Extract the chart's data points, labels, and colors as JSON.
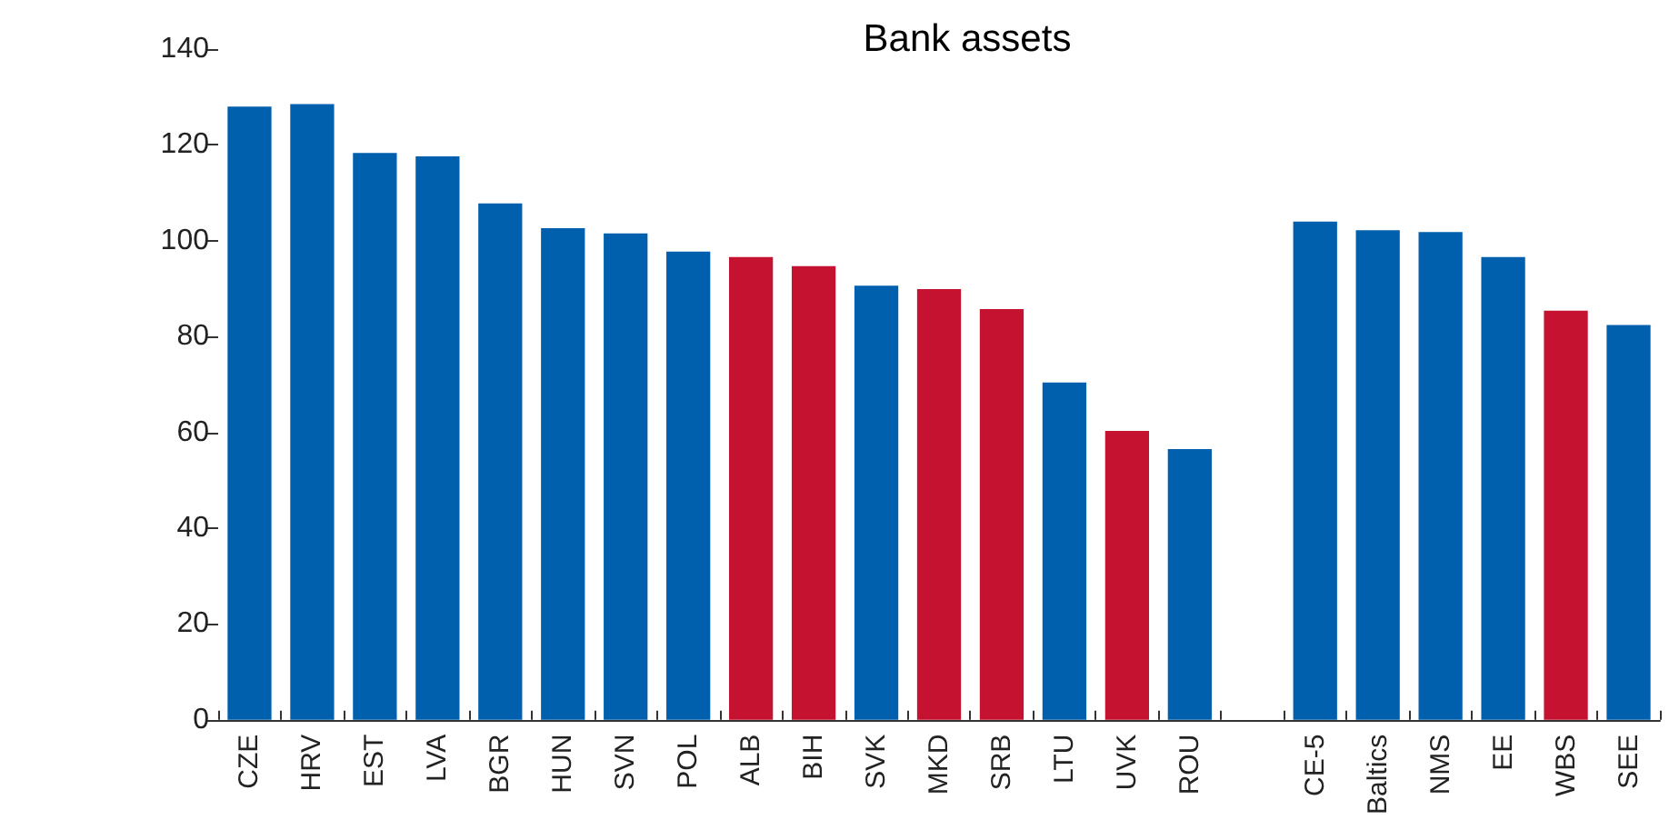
{
  "chart_data": {
    "type": "bar",
    "title": "Bank assets",
    "categories": [
      "CZE",
      "HRV",
      "EST",
      "LVA",
      "BGR",
      "HUN",
      "SVN",
      "POL",
      "ALB",
      "BIH",
      "SVK",
      "MKD",
      "SRB",
      "LTU",
      "UVK",
      "ROU",
      null,
      "CE-5",
      "Baltics",
      "NMS",
      "EE",
      "WBS",
      "SEE"
    ],
    "values": [
      128,
      128.5,
      118.3,
      117.6,
      107.8,
      102.6,
      101.5,
      97.7,
      96.6,
      94.7,
      90.6,
      89.9,
      85.7,
      70.4,
      60.3,
      56.5,
      null,
      104,
      102.2,
      101.8,
      96.6,
      85.4,
      82.4
    ],
    "colors": [
      "#0060ae",
      "#0060ae",
      "#0060ae",
      "#0060ae",
      "#0060ae",
      "#0060ae",
      "#0060ae",
      "#0060ae",
      "#c41230",
      "#c41230",
      "#0060ae",
      "#c41230",
      "#c41230",
      "#0060ae",
      "#c41230",
      "#0060ae",
      null,
      "#0060ae",
      "#0060ae",
      "#0060ae",
      "#0060ae",
      "#c41230",
      "#0060ae"
    ],
    "ylim": [
      0,
      140
    ],
    "yticks": [
      0,
      20,
      40,
      60,
      80,
      100,
      120,
      140
    ],
    "grid": false
  }
}
